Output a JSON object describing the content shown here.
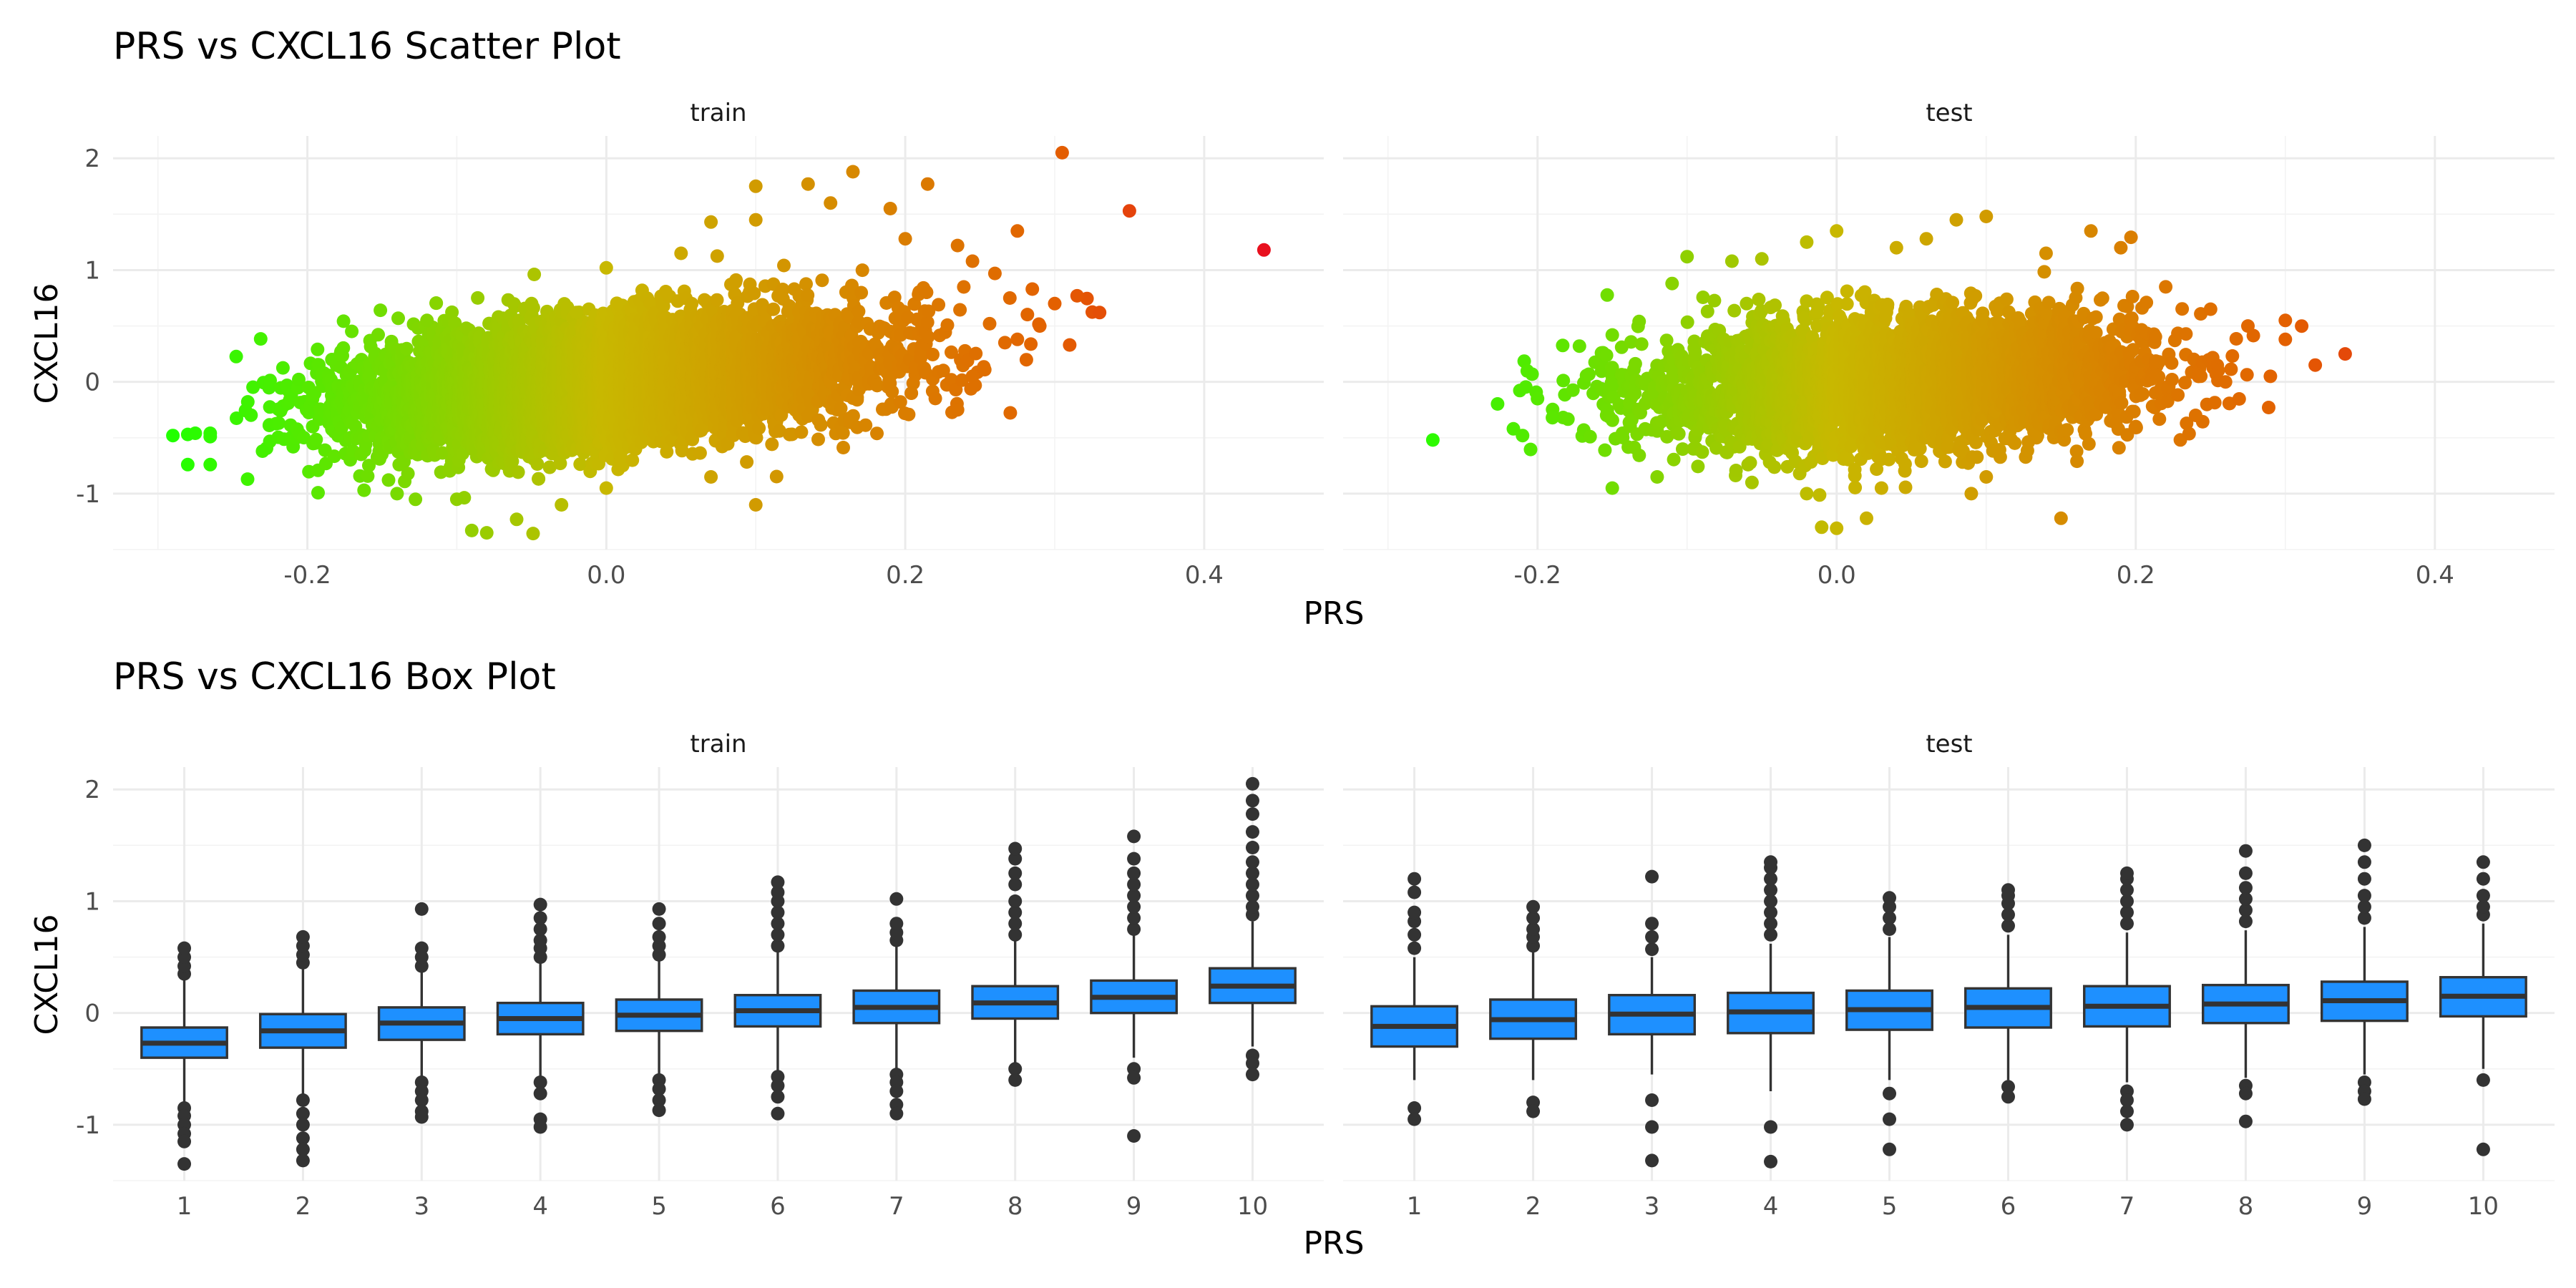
{
  "figure": {
    "scatter_title": "PRS vs CXCL16 Scatter Plot",
    "box_title": "PRS vs CXCL16 Box Plot",
    "xlabel": "PRS",
    "ylabel": "CXCL16",
    "panels": [
      "train",
      "test"
    ]
  },
  "colors": {
    "low": "#22ff00",
    "mid": "#c8b800",
    "high": "#e36000",
    "extreme": "#e8101e",
    "box_fill": "#1e90ff",
    "box_line": "#333333",
    "grid": "#ebebeb"
  },
  "chart_data": [
    {
      "type": "scatter",
      "title": "PRS vs CXCL16 Scatter Plot",
      "xlabel": "PRS",
      "ylabel": "CXCL16",
      "facets": [
        "train",
        "test"
      ],
      "xlim": [
        -0.33,
        0.48
      ],
      "ylim": [
        -1.5,
        2.2
      ],
      "xticks": [
        -0.2,
        0.0,
        0.2,
        0.4
      ],
      "xtick_labels": [
        "-0.2",
        "0.0",
        "0.2",
        "0.4"
      ],
      "yticks": [
        -1,
        0,
        1,
        2
      ],
      "ytick_labels": [
        "-1",
        "0",
        "1",
        "2"
      ],
      "color_scale": "continuous by PRS: green (low) to orange/red (high)",
      "grid": true,
      "series": [
        {
          "name": "train",
          "points": [
            [
              -0.29,
              -0.48
            ],
            [
              -0.28,
              -0.47
            ],
            [
              -0.275,
              -0.46
            ],
            [
              -0.265,
              -0.46
            ],
            [
              -0.265,
              -0.49
            ],
            [
              -0.28,
              -0.74
            ],
            [
              -0.265,
              -0.74
            ],
            [
              -0.24,
              -0.87
            ],
            [
              -0.23,
              -0.62
            ],
            [
              -0.12,
              0.55
            ],
            [
              -0.05,
              0.7
            ],
            [
              -0.02,
              0.62
            ],
            [
              0.0,
              1.02
            ],
            [
              0.05,
              1.15
            ],
            [
              0.07,
              1.43
            ],
            [
              0.1,
              1.45
            ],
            [
              0.1,
              1.75
            ],
            [
              0.135,
              1.77
            ],
            [
              0.15,
              1.6
            ],
            [
              0.165,
              1.88
            ],
            [
              0.19,
              1.55
            ],
            [
              0.215,
              1.77
            ],
            [
              0.2,
              1.28
            ],
            [
              0.235,
              1.22
            ],
            [
              0.275,
              1.35
            ],
            [
              0.245,
              1.08
            ],
            [
              0.26,
              0.97
            ],
            [
              0.27,
              0.75
            ],
            [
              0.285,
              0.83
            ],
            [
              0.3,
              0.7
            ],
            [
              0.315,
              0.77
            ],
            [
              0.33,
              0.62
            ],
            [
              0.29,
              0.5
            ],
            [
              0.31,
              0.33
            ],
            [
              0.275,
              0.38
            ],
            [
              0.245,
              0.05
            ],
            [
              0.235,
              -0.25
            ],
            [
              0.305,
              2.05
            ],
            [
              0.35,
              1.53
            ],
            [
              0.44,
              1.18
            ],
            [
              -0.09,
              -1.33
            ],
            [
              -0.08,
              -1.35
            ],
            [
              -0.06,
              -1.23
            ],
            [
              -0.03,
              -1.1
            ],
            [
              0.1,
              -1.1
            ],
            [
              -0.14,
              -1.0
            ],
            [
              -0.1,
              -1.05
            ],
            [
              0.0,
              -0.95
            ],
            [
              0.07,
              -0.85
            ]
          ]
        },
        {
          "name": "test",
          "points": [
            [
              -0.27,
              -0.52
            ],
            [
              -0.2,
              -0.15
            ],
            [
              -0.21,
              -0.48
            ],
            [
              -0.19,
              -0.32
            ],
            [
              -0.15,
              0.42
            ],
            [
              -0.11,
              0.88
            ],
            [
              -0.1,
              1.12
            ],
            [
              -0.07,
              1.08
            ],
            [
              -0.05,
              1.1
            ],
            [
              -0.02,
              1.25
            ],
            [
              0.0,
              1.35
            ],
            [
              0.04,
              1.2
            ],
            [
              0.06,
              1.28
            ],
            [
              0.08,
              1.45
            ],
            [
              0.1,
              1.48
            ],
            [
              0.14,
              1.15
            ],
            [
              0.17,
              1.35
            ],
            [
              0.19,
              1.2
            ],
            [
              0.22,
              0.85
            ],
            [
              0.25,
              0.65
            ],
            [
              0.275,
              0.5
            ],
            [
              0.3,
              0.55
            ],
            [
              0.3,
              0.38
            ],
            [
              0.29,
              0.05
            ],
            [
              0.32,
              0.15
            ],
            [
              0.34,
              0.25
            ],
            [
              0.26,
              0.0
            ],
            [
              0.24,
              -0.3
            ],
            [
              0.2,
              -0.4
            ],
            [
              -0.01,
              -1.3
            ],
            [
              0.0,
              -1.31
            ],
            [
              0.02,
              -1.22
            ],
            [
              -0.02,
              -1.0
            ],
            [
              0.03,
              -0.95
            ],
            [
              0.09,
              -1.0
            ],
            [
              0.15,
              -1.22
            ],
            [
              0.1,
              -0.85
            ],
            [
              -0.15,
              -0.95
            ],
            [
              -0.12,
              -0.85
            ]
          ]
        }
      ]
    },
    {
      "type": "box",
      "title": "PRS vs CXCL16 Box Plot",
      "xlabel": "PRS",
      "ylabel": "CXCL16",
      "facets": [
        "train",
        "test"
      ],
      "categories": [
        "1",
        "2",
        "3",
        "4",
        "5",
        "6",
        "7",
        "8",
        "9",
        "10"
      ],
      "ylim": [
        -1.5,
        2.2
      ],
      "yticks": [
        -1,
        0,
        1,
        2
      ],
      "ytick_labels": [
        "-1",
        "0",
        "1",
        "2"
      ],
      "grid": true,
      "series": [
        {
          "name": "train",
          "boxes": [
            {
              "whisker_low": -0.82,
              "q1": -0.4,
              "median": -0.27,
              "q3": -0.13,
              "whisker_high": 0.3,
              "outliers": [
                0.35,
                0.42,
                0.5,
                0.58,
                -0.85,
                -0.92,
                -1.0,
                -1.08,
                -1.15,
                -1.35
              ]
            },
            {
              "whisker_low": -0.75,
              "q1": -0.31,
              "median": -0.16,
              "q3": -0.01,
              "whisker_high": 0.4,
              "outliers": [
                0.45,
                0.52,
                0.6,
                0.68,
                -0.78,
                -0.9,
                -1.0,
                -1.12,
                -1.22,
                -1.32
              ]
            },
            {
              "whisker_low": -0.6,
              "q1": -0.24,
              "median": -0.09,
              "q3": 0.05,
              "whisker_high": 0.38,
              "outliers": [
                0.42,
                0.5,
                0.58,
                0.93,
                -0.62,
                -0.7,
                -0.78,
                -0.88,
                -0.93
              ]
            },
            {
              "whisker_low": -0.58,
              "q1": -0.19,
              "median": -0.05,
              "q3": 0.09,
              "whisker_high": 0.45,
              "outliers": [
                0.5,
                0.58,
                0.65,
                0.75,
                0.85,
                0.97,
                -0.62,
                -0.72,
                -0.95,
                -1.02
              ]
            },
            {
              "whisker_low": -0.55,
              "q1": -0.16,
              "median": -0.02,
              "q3": 0.12,
              "whisker_high": 0.48,
              "outliers": [
                0.52,
                0.6,
                0.68,
                0.8,
                0.93,
                -0.6,
                -0.68,
                -0.78,
                -0.87
              ]
            },
            {
              "whisker_low": -0.52,
              "q1": -0.12,
              "median": 0.02,
              "q3": 0.16,
              "whisker_high": 0.55,
              "outliers": [
                0.6,
                0.7,
                0.8,
                0.9,
                1.0,
                1.08,
                1.17,
                -0.57,
                -0.65,
                -0.75,
                -0.9
              ]
            },
            {
              "whisker_low": -0.5,
              "q1": -0.09,
              "median": 0.05,
              "q3": 0.2,
              "whisker_high": 0.6,
              "outliers": [
                0.65,
                0.72,
                0.8,
                1.02,
                -0.55,
                -0.62,
                -0.7,
                -0.82,
                -0.9
              ]
            },
            {
              "whisker_low": -0.45,
              "q1": -0.05,
              "median": 0.09,
              "q3": 0.24,
              "whisker_high": 0.65,
              "outliers": [
                0.7,
                0.8,
                0.9,
                1.0,
                1.15,
                1.25,
                1.38,
                1.47,
                -0.5,
                -0.6
              ]
            },
            {
              "whisker_low": -0.4,
              "q1": 0.0,
              "median": 0.14,
              "q3": 0.29,
              "whisker_high": 0.7,
              "outliers": [
                0.75,
                0.85,
                0.95,
                1.05,
                1.15,
                1.25,
                1.38,
                1.58,
                -0.5,
                -0.58,
                -1.1
              ]
            },
            {
              "whisker_low": -0.3,
              "q1": 0.09,
              "median": 0.24,
              "q3": 0.4,
              "whisker_high": 0.82,
              "outliers": [
                0.88,
                0.95,
                1.05,
                1.15,
                1.25,
                1.35,
                1.48,
                1.62,
                1.78,
                1.9,
                2.05,
                -0.38,
                -0.45,
                -0.55
              ]
            }
          ]
        },
        {
          "name": "test",
          "boxes": [
            {
              "whisker_low": -0.6,
              "q1": -0.3,
              "median": -0.12,
              "q3": 0.06,
              "whisker_high": 0.5,
              "outliers": [
                0.58,
                0.7,
                0.82,
                0.9,
                1.08,
                1.2,
                -0.85,
                -0.95
              ]
            },
            {
              "whisker_low": -0.6,
              "q1": -0.23,
              "median": -0.06,
              "q3": 0.12,
              "whisker_high": 0.55,
              "outliers": [
                0.6,
                0.68,
                0.75,
                0.85,
                0.95,
                -0.8,
                -0.88
              ]
            },
            {
              "whisker_low": -0.55,
              "q1": -0.19,
              "median": -0.01,
              "q3": 0.16,
              "whisker_high": 0.5,
              "outliers": [
                0.57,
                0.68,
                0.8,
                1.22,
                -0.78,
                -1.02,
                -1.32
              ]
            },
            {
              "whisker_low": -0.7,
              "q1": -0.18,
              "median": 0.01,
              "q3": 0.18,
              "whisker_high": 0.62,
              "outliers": [
                0.7,
                0.8,
                0.9,
                1.0,
                1.1,
                1.2,
                1.3,
                1.35,
                -1.02,
                -1.33
              ]
            },
            {
              "whisker_low": -0.6,
              "q1": -0.15,
              "median": 0.03,
              "q3": 0.2,
              "whisker_high": 0.68,
              "outliers": [
                0.75,
                0.85,
                0.95,
                1.03,
                -0.72,
                -0.95,
                -1.22
              ]
            },
            {
              "whisker_low": -0.6,
              "q1": -0.13,
              "median": 0.05,
              "q3": 0.22,
              "whisker_high": 0.7,
              "outliers": [
                0.78,
                0.88,
                0.98,
                1.05,
                1.1,
                -0.66,
                -0.75
              ]
            },
            {
              "whisker_low": -0.62,
              "q1": -0.12,
              "median": 0.06,
              "q3": 0.24,
              "whisker_high": 0.72,
              "outliers": [
                0.8,
                0.9,
                1.0,
                1.1,
                1.2,
                1.25,
                -0.7,
                -0.78,
                -0.88,
                -1.0
              ]
            },
            {
              "whisker_low": -0.58,
              "q1": -0.09,
              "median": 0.08,
              "q3": 0.25,
              "whisker_high": 0.74,
              "outliers": [
                0.82,
                0.92,
                1.02,
                1.12,
                1.25,
                1.45,
                -0.65,
                -0.72,
                -0.97
              ]
            },
            {
              "whisker_low": -0.55,
              "q1": -0.07,
              "median": 0.11,
              "q3": 0.28,
              "whisker_high": 0.77,
              "outliers": [
                0.85,
                0.95,
                1.05,
                1.2,
                1.35,
                1.5,
                -0.62,
                -0.7,
                -0.77
              ]
            },
            {
              "whisker_low": -0.5,
              "q1": -0.03,
              "median": 0.15,
              "q3": 0.32,
              "whisker_high": 0.8,
              "outliers": [
                0.88,
                0.95,
                1.05,
                1.2,
                1.35,
                -0.6,
                -1.22
              ]
            }
          ]
        }
      ]
    }
  ]
}
